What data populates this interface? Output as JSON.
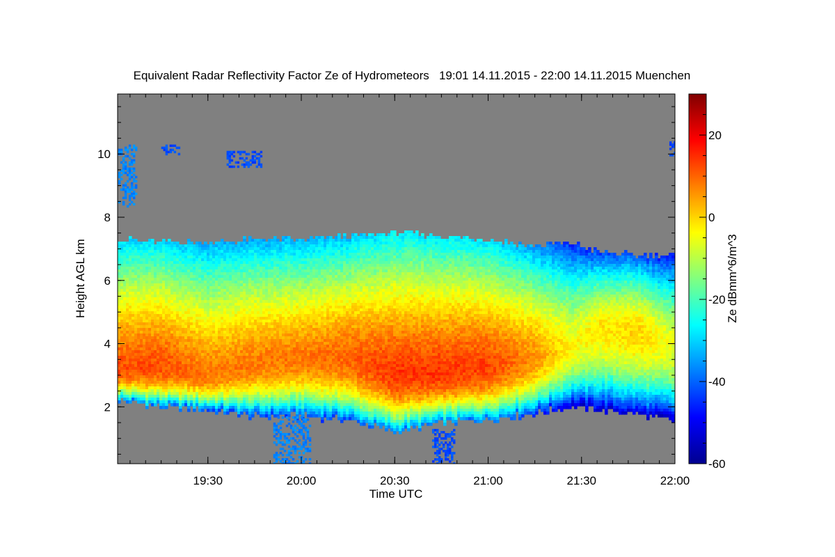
{
  "chart_data": {
    "type": "heatmap",
    "title": "Equivalent Radar Reflectivity Factor Ze of Hydrometeors   19:01 14.11.2015 - 22:00 14.11.2015 Muenchen",
    "xlabel": "Time UTC",
    "ylabel": "Height AGL km",
    "xlim": [
      19.0167,
      22.0
    ],
    "ylim": [
      0.2,
      11.9
    ],
    "x_ticks": [
      {
        "value": 19.5,
        "label": "19:30"
      },
      {
        "value": 20.0,
        "label": "20:00"
      },
      {
        "value": 20.5,
        "label": "20:30"
      },
      {
        "value": 21.0,
        "label": "21:00"
      },
      {
        "value": 21.5,
        "label": "21:30"
      },
      {
        "value": 22.0,
        "label": "22:00"
      }
    ],
    "y_ticks": [
      {
        "value": 2,
        "label": "2"
      },
      {
        "value": 4,
        "label": "4"
      },
      {
        "value": 6,
        "label": "6"
      },
      {
        "value": 8,
        "label": "8"
      },
      {
        "value": 10,
        "label": "10"
      }
    ],
    "colorbar": {
      "label": "Ze dBmm^6/m^3",
      "range": [
        -60,
        30
      ],
      "ticks": [
        {
          "value": -60,
          "label": "-60"
        },
        {
          "value": -40,
          "label": "-40"
        },
        {
          "value": -20,
          "label": "-20"
        },
        {
          "value": 0,
          "label": "0"
        },
        {
          "value": 20,
          "label": "20"
        }
      ],
      "colors": [
        "#00008f",
        "#0000ff",
        "#0080ff",
        "#00ffff",
        "#80ff80",
        "#ffff00",
        "#ff8000",
        "#ff0000",
        "#800000"
      ]
    },
    "background_color": "#808080",
    "cloud_layer": {
      "time": [
        19.03,
        19.25,
        19.5,
        19.75,
        20.0,
        20.25,
        20.5,
        20.75,
        21.0,
        21.25,
        21.45,
        21.6,
        21.8,
        22.0
      ],
      "base_km": [
        2.2,
        2.0,
        1.9,
        1.7,
        1.7,
        1.6,
        1.2,
        1.5,
        1.6,
        1.8,
        2.0,
        1.9,
        1.8,
        1.5
      ],
      "top_km": [
        7.3,
        7.2,
        7.2,
        7.3,
        7.3,
        7.4,
        7.5,
        7.4,
        7.3,
        7.1,
        7.2,
        6.9,
        6.8,
        6.8
      ],
      "peak_dbz": [
        12,
        12,
        8,
        8,
        8,
        10,
        14,
        14,
        13,
        6,
        -4,
        -2,
        0,
        -6
      ],
      "peak_height_km": [
        3.2,
        3.3,
        3.0,
        3.4,
        3.6,
        3.6,
        3.1,
        3.1,
        3.3,
        3.6,
        4.0,
        4.6,
        4.5,
        4.0
      ]
    },
    "features": [
      {
        "type": "cirrus",
        "time_start": 19.02,
        "time_end": 19.12,
        "height_min_km": 8.3,
        "height_max_km": 10.3,
        "dbz": -40
      },
      {
        "type": "cirrus",
        "time_start": 19.25,
        "time_end": 19.35,
        "height_min_km": 10.0,
        "height_max_km": 10.3,
        "dbz": -45
      },
      {
        "type": "cirrus",
        "time_start": 19.6,
        "time_end": 19.78,
        "height_min_km": 9.6,
        "height_max_km": 10.1,
        "dbz": -45
      },
      {
        "type": "cirrus",
        "time_start": 21.97,
        "time_end": 22.0,
        "height_min_km": 10.0,
        "height_max_km": 10.4,
        "dbz": -45
      },
      {
        "type": "precipitation",
        "time_start": 19.85,
        "time_end": 20.05,
        "height_min_km": 0.2,
        "height_max_km": 1.7,
        "dbz": -40
      },
      {
        "type": "precipitation",
        "time_start": 20.7,
        "time_end": 20.82,
        "height_min_km": 0.2,
        "height_max_km": 1.3,
        "dbz": -45
      }
    ]
  }
}
